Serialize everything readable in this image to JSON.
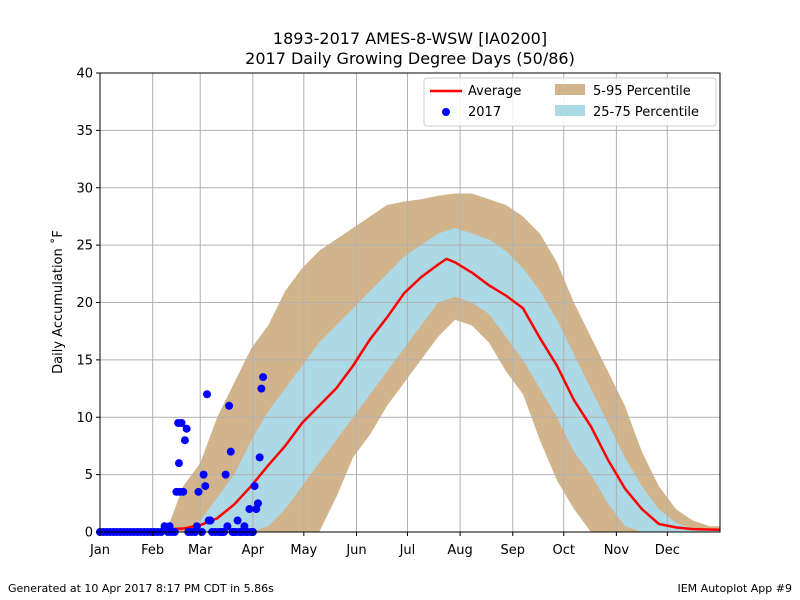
{
  "chart_data": {
    "type": "line",
    "title": "1893-2017 AMES-8-WSW [IA0200]",
    "subtitle": "2017 Daily Growing Degree Days (50/86)",
    "ylabel": "Daily Accumulation ˚F",
    "ylim": [
      0,
      40
    ],
    "xlim": [
      1,
      366
    ],
    "yticks": [
      0,
      5,
      10,
      15,
      20,
      25,
      30,
      35,
      40
    ],
    "xticks": [
      {
        "day": 1,
        "label": "Jan"
      },
      {
        "day": 32,
        "label": "Feb"
      },
      {
        "day": 60,
        "label": "Mar"
      },
      {
        "day": 91,
        "label": "Apr"
      },
      {
        "day": 121,
        "label": "May"
      },
      {
        "day": 152,
        "label": "Jun"
      },
      {
        "day": 182,
        "label": "Jul"
      },
      {
        "day": 213,
        "label": "Aug"
      },
      {
        "day": 244,
        "label": "Sep"
      },
      {
        "day": 274,
        "label": "Oct"
      },
      {
        "day": 305,
        "label": "Nov"
      },
      {
        "day": 335,
        "label": "Dec"
      }
    ],
    "grid": true,
    "legend_position": "top-right",
    "series": [
      {
        "name": "Average",
        "kind": "line",
        "color": "#ff0000",
        "points": [
          [
            1,
            0.1
          ],
          [
            30,
            0.15
          ],
          [
            50,
            0.3
          ],
          [
            60,
            0.6
          ],
          [
            70,
            1.2
          ],
          [
            80,
            2.4
          ],
          [
            90,
            4.0
          ],
          [
            100,
            5.8
          ],
          [
            110,
            7.5
          ],
          [
            120,
            9.5
          ],
          [
            130,
            11.0
          ],
          [
            140,
            12.5
          ],
          [
            150,
            14.5
          ],
          [
            160,
            16.8
          ],
          [
            170,
            18.7
          ],
          [
            180,
            20.8
          ],
          [
            190,
            22.2
          ],
          [
            200,
            23.3
          ],
          [
            205,
            23.8
          ],
          [
            210,
            23.5
          ],
          [
            220,
            22.6
          ],
          [
            230,
            21.5
          ],
          [
            240,
            20.6
          ],
          [
            250,
            19.5
          ],
          [
            260,
            16.9
          ],
          [
            270,
            14.5
          ],
          [
            280,
            11.5
          ],
          [
            290,
            9.2
          ],
          [
            300,
            6.3
          ],
          [
            310,
            3.8
          ],
          [
            320,
            2.0
          ],
          [
            330,
            0.7
          ],
          [
            340,
            0.4
          ],
          [
            350,
            0.25
          ],
          [
            366,
            0.2
          ]
        ]
      },
      {
        "name": "2017",
        "kind": "scatter",
        "color": "#0000ff",
        "points": [
          [
            1,
            0
          ],
          [
            3,
            0
          ],
          [
            5,
            0
          ],
          [
            7,
            0
          ],
          [
            9,
            0
          ],
          [
            11,
            0
          ],
          [
            13,
            0
          ],
          [
            15,
            0
          ],
          [
            17,
            0
          ],
          [
            19,
            0
          ],
          [
            21,
            0
          ],
          [
            23,
            0
          ],
          [
            25,
            0
          ],
          [
            27,
            0
          ],
          [
            29,
            0
          ],
          [
            31,
            0
          ],
          [
            33,
            0
          ],
          [
            35,
            0
          ],
          [
            37,
            0
          ],
          [
            39,
            0.5
          ],
          [
            41,
            0
          ],
          [
            42,
            0.5
          ],
          [
            43,
            0
          ],
          [
            45,
            0
          ],
          [
            46,
            3.5
          ],
          [
            47,
            9.5
          ],
          [
            47.5,
            6
          ],
          [
            48,
            3.5
          ],
          [
            49,
            9.5
          ],
          [
            50,
            3.5
          ],
          [
            51,
            8
          ],
          [
            52,
            9
          ],
          [
            53,
            0
          ],
          [
            55,
            0
          ],
          [
            57,
            0
          ],
          [
            58,
            0.5
          ],
          [
            59,
            3.5
          ],
          [
            61,
            0
          ],
          [
            62,
            5
          ],
          [
            63,
            4
          ],
          [
            64,
            12
          ],
          [
            65,
            1
          ],
          [
            66,
            1
          ],
          [
            67,
            0
          ],
          [
            69,
            0
          ],
          [
            71,
            0
          ],
          [
            72,
            0
          ],
          [
            73,
            0
          ],
          [
            74,
            0
          ],
          [
            75,
            5
          ],
          [
            76,
            0.5
          ],
          [
            77,
            11
          ],
          [
            78,
            7
          ],
          [
            79,
            0
          ],
          [
            80,
            0
          ],
          [
            81,
            0
          ],
          [
            82,
            1
          ],
          [
            83,
            0
          ],
          [
            84,
            0
          ],
          [
            85,
            0
          ],
          [
            86,
            0.5
          ],
          [
            87,
            0
          ],
          [
            88,
            0
          ],
          [
            89,
            2
          ],
          [
            90,
            0
          ],
          [
            91,
            0
          ],
          [
            92,
            4
          ],
          [
            93,
            2
          ],
          [
            94,
            2.5
          ],
          [
            95,
            6.5
          ],
          [
            96,
            12.5
          ],
          [
            97,
            13.5
          ]
        ]
      },
      {
        "name": "5-95 Percentile",
        "kind": "band",
        "color": "#d2b48c",
        "lower": [
          [
            1,
            0
          ],
          [
            130,
            0
          ],
          [
            140,
            3
          ],
          [
            150,
            6.5
          ],
          [
            160,
            8.5
          ],
          [
            170,
            11
          ],
          [
            180,
            13
          ],
          [
            190,
            15
          ],
          [
            200,
            17
          ],
          [
            210,
            18.5
          ],
          [
            220,
            18
          ],
          [
            230,
            16.5
          ],
          [
            240,
            14
          ],
          [
            250,
            12
          ],
          [
            260,
            8
          ],
          [
            270,
            4.5
          ],
          [
            280,
            2
          ],
          [
            290,
            0
          ],
          [
            366,
            0
          ]
        ],
        "upper": [
          [
            1,
            0
          ],
          [
            40,
            0
          ],
          [
            45,
            2
          ],
          [
            50,
            4
          ],
          [
            60,
            6
          ],
          [
            70,
            10
          ],
          [
            80,
            13
          ],
          [
            90,
            16
          ],
          [
            100,
            18
          ],
          [
            110,
            21
          ],
          [
            120,
            23
          ],
          [
            130,
            24.5
          ],
          [
            140,
            25.5
          ],
          [
            150,
            26.5
          ],
          [
            160,
            27.5
          ],
          [
            170,
            28.5
          ],
          [
            180,
            28.8
          ],
          [
            190,
            29
          ],
          [
            200,
            29.3
          ],
          [
            210,
            29.5
          ],
          [
            220,
            29.5
          ],
          [
            230,
            29
          ],
          [
            240,
            28.5
          ],
          [
            250,
            27.5
          ],
          [
            260,
            26
          ],
          [
            270,
            23.5
          ],
          [
            280,
            20
          ],
          [
            290,
            17
          ],
          [
            300,
            14
          ],
          [
            310,
            11
          ],
          [
            320,
            7
          ],
          [
            330,
            4
          ],
          [
            340,
            2
          ],
          [
            350,
            1
          ],
          [
            360,
            0.5
          ],
          [
            366,
            0.5
          ]
        ]
      },
      {
        "name": "25-75 Percentile",
        "kind": "band",
        "color": "#add8e6",
        "lower": [
          [
            1,
            0
          ],
          [
            90,
            0
          ],
          [
            100,
            0.5
          ],
          [
            110,
            2
          ],
          [
            120,
            4
          ],
          [
            130,
            6
          ],
          [
            140,
            8
          ],
          [
            150,
            10
          ],
          [
            160,
            12
          ],
          [
            170,
            14
          ],
          [
            180,
            16
          ],
          [
            190,
            18
          ],
          [
            200,
            20
          ],
          [
            210,
            20.5
          ],
          [
            220,
            20
          ],
          [
            230,
            19
          ],
          [
            240,
            17
          ],
          [
            250,
            15
          ],
          [
            260,
            12.5
          ],
          [
            270,
            10
          ],
          [
            280,
            7
          ],
          [
            290,
            5
          ],
          [
            300,
            2.5
          ],
          [
            310,
            0.5
          ],
          [
            320,
            0
          ],
          [
            366,
            0
          ]
        ],
        "upper": [
          [
            1,
            0
          ],
          [
            50,
            0
          ],
          [
            60,
            1
          ],
          [
            70,
            3
          ],
          [
            80,
            5
          ],
          [
            90,
            8
          ],
          [
            100,
            10.5
          ],
          [
            110,
            12.5
          ],
          [
            120,
            14.5
          ],
          [
            130,
            16.5
          ],
          [
            140,
            18
          ],
          [
            150,
            19.5
          ],
          [
            160,
            21
          ],
          [
            170,
            22.5
          ],
          [
            180,
            24
          ],
          [
            190,
            25
          ],
          [
            200,
            26
          ],
          [
            210,
            26.5
          ],
          [
            220,
            26
          ],
          [
            230,
            25.5
          ],
          [
            240,
            24.5
          ],
          [
            250,
            23
          ],
          [
            260,
            21
          ],
          [
            270,
            18.5
          ],
          [
            280,
            15.5
          ],
          [
            290,
            12.5
          ],
          [
            300,
            9.5
          ],
          [
            310,
            6.5
          ],
          [
            320,
            4
          ],
          [
            330,
            2
          ],
          [
            340,
            0.8
          ],
          [
            350,
            0.3
          ],
          [
            366,
            0.2
          ]
        ]
      }
    ]
  },
  "footer": {
    "left": "Generated at 10 Apr 2017 8:17 PM CDT in 5.86s",
    "right": "IEM Autoplot App #9"
  }
}
